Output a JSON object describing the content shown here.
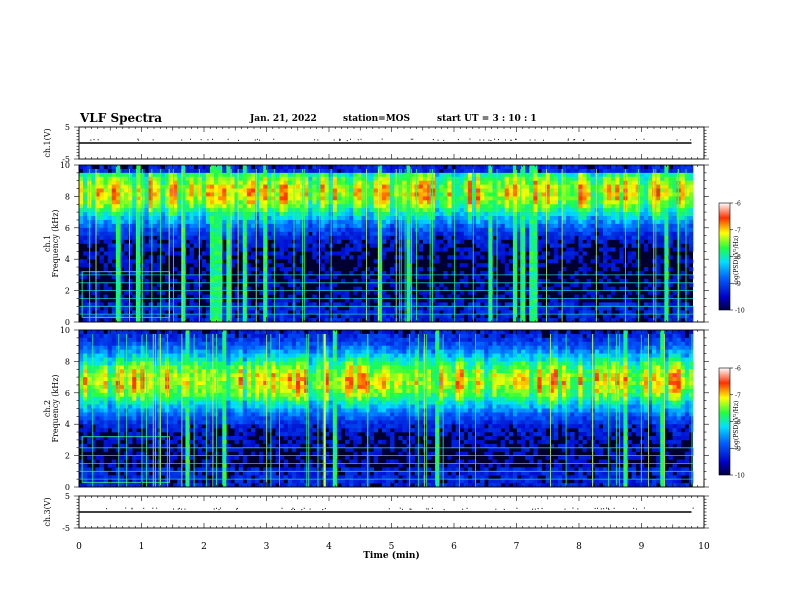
{
  "header": {
    "title": "VLF Spectra",
    "date": "Jan. 21, 2022",
    "station": "station=MOS",
    "start_ut": "start UT =  3 : 10 : 1"
  },
  "chart_data": [
    {
      "type": "line",
      "panel": "ch1-waveform",
      "ylabel": "ch.1(V)",
      "ylim": [
        -5,
        5
      ],
      "yticks": [
        5,
        -5
      ],
      "xlim": [
        0,
        10
      ],
      "series": [
        {
          "x": [
            0,
            9.8
          ],
          "values": [
            0,
            0
          ]
        }
      ]
    },
    {
      "type": "heatmap",
      "panel": "ch1-spectrogram",
      "ylabel": "ch.1 Frequency (kHz)",
      "ylim": [
        0,
        10
      ],
      "yticks": [
        0,
        2,
        4,
        6,
        8,
        10
      ],
      "xlim": [
        0,
        10
      ],
      "colorbar": {
        "label": "log(PSD)(V²/Hz)",
        "min": -10,
        "max": -6,
        "ticks": [
          "-6",
          "-7",
          "-8",
          "-9",
          "-10"
        ]
      },
      "peak_band_khz": [
        7,
        9.5
      ],
      "lines_khz": [
        0.5,
        1.0,
        1.5,
        2.0,
        2.5,
        3.0
      ]
    },
    {
      "type": "heatmap",
      "panel": "ch2-spectrogram",
      "ylabel": "ch.2 Frequency (kHz)",
      "ylim": [
        0,
        10
      ],
      "yticks": [
        0,
        2,
        4,
        6,
        8,
        10
      ],
      "xlim": [
        0,
        10
      ],
      "colorbar": {
        "label": "log(PSD)(V²/Hz)",
        "min": -10,
        "max": -6,
        "ticks": [
          "-6",
          "-7",
          "-8",
          "-9",
          "-10"
        ]
      },
      "peak_band_khz": [
        5.5,
        8
      ],
      "lines_khz": [
        0.5,
        1.0,
        1.5,
        2.0,
        2.5
      ]
    },
    {
      "type": "line",
      "panel": "ch3-waveform",
      "ylabel": "ch.3(V)",
      "ylim": [
        -5,
        5
      ],
      "yticks": [
        5,
        -5
      ],
      "xlim": [
        0,
        10
      ],
      "series": [
        {
          "x": [
            0,
            9.8
          ],
          "values": [
            0,
            0
          ]
        }
      ]
    }
  ],
  "x_axis": {
    "label": "Time (min)",
    "ticks": [
      "0",
      "1",
      "2",
      "3",
      "4",
      "5",
      "6",
      "7",
      "8",
      "9",
      "10"
    ]
  }
}
